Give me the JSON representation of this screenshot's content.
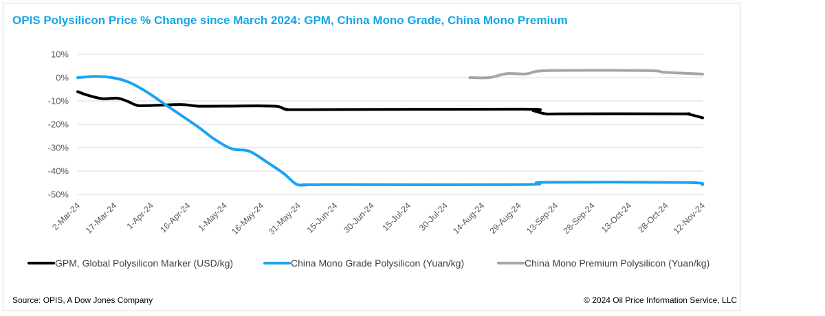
{
  "chart_data": {
    "type": "line",
    "title": "OPIS  Polysilicon Price %  Change since March 2024: GPM, China Mono Grade, China Mono Premium",
    "xlabel": "",
    "ylabel": "",
    "ylim": [
      -50,
      10
    ],
    "y_ticks": [
      10,
      0,
      -10,
      -20,
      -30,
      -40,
      -50
    ],
    "y_tick_labels": [
      "10%",
      "0%",
      "-10%",
      "-20%",
      "-30%",
      "-40%",
      "-50%"
    ],
    "x_domain": [
      "2024-03-02",
      "2024-11-12"
    ],
    "x_tick_dates": [
      "2024-03-02",
      "2024-03-17",
      "2024-04-01",
      "2024-04-16",
      "2024-05-01",
      "2024-05-16",
      "2024-05-31",
      "2024-06-15",
      "2024-06-30",
      "2024-07-15",
      "2024-07-30",
      "2024-08-14",
      "2024-08-29",
      "2024-09-13",
      "2024-09-28",
      "2024-10-13",
      "2024-10-28",
      "2024-11-12"
    ],
    "x_tick_labels": [
      "2-Mar-24",
      "17-Mar-24",
      "1-Apr-24",
      "16-Apr-24",
      "1-May-24",
      "16-May-24",
      "31-May-24",
      "15-Jun-24",
      "30-Jun-24",
      "15-Jul-24",
      "30-Jul-24",
      "14-Aug-24",
      "29-Aug-24",
      "13-Sep-24",
      "28-Sep-24",
      "13-Oct-24",
      "28-Oct-24",
      "12-Nov-24"
    ],
    "grid": "horizontal",
    "legend_position": "bottom",
    "series": [
      {
        "name": "GPM, Global Polysilicon Marker (USD/kg)",
        "color": "#000000",
        "points": [
          [
            "2024-03-02",
            -6
          ],
          [
            "2024-03-06",
            -7.5
          ],
          [
            "2024-03-12",
            -9
          ],
          [
            "2024-03-18",
            -8.8
          ],
          [
            "2024-03-22",
            -10
          ],
          [
            "2024-03-26",
            -11.8
          ],
          [
            "2024-03-30",
            -12
          ],
          [
            "2024-04-13",
            -11.5
          ],
          [
            "2024-04-20",
            -12.2
          ],
          [
            "2024-04-30",
            -12.2
          ],
          [
            "2024-05-21",
            -12.2
          ],
          [
            "2024-05-26",
            -13.5
          ],
          [
            "2024-06-05",
            -13.7
          ],
          [
            "2024-08-30",
            -13.5
          ],
          [
            "2024-09-04",
            -14.2
          ],
          [
            "2024-09-09",
            -15.5
          ],
          [
            "2024-09-16",
            -15.5
          ],
          [
            "2024-11-02",
            -15.5
          ],
          [
            "2024-11-06",
            -15.6
          ],
          [
            "2024-11-12",
            -17.2
          ]
        ]
      },
      {
        "name": "China Mono Grade Polysilicon (Yuan/kg)",
        "color": "#1aa3f5",
        "points": [
          [
            "2024-03-02",
            0
          ],
          [
            "2024-03-09",
            0.5
          ],
          [
            "2024-03-16",
            0
          ],
          [
            "2024-03-23",
            -2
          ],
          [
            "2024-03-30",
            -6
          ],
          [
            "2024-04-06",
            -11
          ],
          [
            "2024-04-13",
            -16
          ],
          [
            "2024-04-20",
            -21
          ],
          [
            "2024-04-27",
            -26.5
          ],
          [
            "2024-05-04",
            -30.5
          ],
          [
            "2024-05-11",
            -31.5
          ],
          [
            "2024-05-18",
            -36
          ],
          [
            "2024-05-25",
            -41
          ],
          [
            "2024-05-30",
            -45.5
          ],
          [
            "2024-06-03",
            -46
          ],
          [
            "2024-06-10",
            -45.8
          ],
          [
            "2024-08-31",
            -45.8
          ],
          [
            "2024-09-09",
            -44.8
          ],
          [
            "2024-11-05",
            -44.9
          ],
          [
            "2024-11-12",
            -45.8
          ]
        ]
      },
      {
        "name": "China Mono Premium Polysilicon (Yuan/kg)",
        "color": "#a6a6a6",
        "points": [
          [
            "2024-08-09",
            0
          ],
          [
            "2024-08-17",
            0
          ],
          [
            "2024-08-24",
            1.7
          ],
          [
            "2024-09-01",
            1.6
          ],
          [
            "2024-09-10",
            3
          ],
          [
            "2024-10-20",
            3
          ],
          [
            "2024-10-27",
            2.3
          ],
          [
            "2024-11-02",
            2
          ],
          [
            "2024-11-12",
            1.5
          ]
        ]
      }
    ]
  },
  "footer": {
    "source": "Source: OPIS, A Dow Jones Company",
    "copyright": "© 2024 Oil Price Information Service, LLC"
  }
}
